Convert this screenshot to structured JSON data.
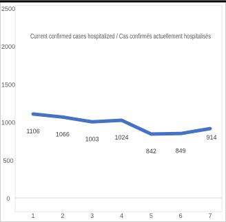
{
  "chart_data": {
    "type": "line",
    "title": "Current confirmed cases hospitalized / Cas confirmés actuellement hospitalisés",
    "xlabel": "",
    "ylabel": "",
    "x": [
      "1",
      "2",
      "3",
      "4",
      "5",
      "6",
      "7"
    ],
    "series": [
      {
        "values": [
          1106,
          1066,
          1003,
          1024,
          842,
          849,
          914
        ],
        "data_labels": [
          "1106",
          "1066",
          "1003",
          "1024",
          "842",
          "849",
          "914"
        ]
      }
    ],
    "ylim": [
      0,
      2500
    ],
    "yticks": [
      "0",
      "500",
      "1000",
      "1500",
      "2000",
      "2500"
    ],
    "grid": false,
    "legend": "none",
    "colors": {
      "line": "#4472C4",
      "axis": "#d9d9d9",
      "text": "#595959",
      "border": "#000000"
    }
  }
}
